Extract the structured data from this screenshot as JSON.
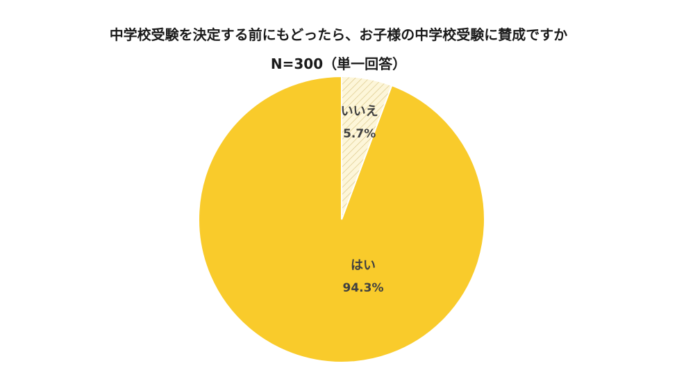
{
  "chart_data": {
    "type": "pie",
    "title": "中学校受験を決定する前にもどったら、お子様の中学校受験に賛成ですか",
    "subtitle": "N=300（単一回答）",
    "categories": [
      "はい",
      "いいえ"
    ],
    "values": [
      94.3,
      5.7
    ],
    "value_labels": [
      "94.3%",
      "5.7%"
    ],
    "unit": "%",
    "colors": [
      "#f9cb2b",
      "#fdf6d9"
    ],
    "slice_patterns": [
      "solid",
      "diagonal-hatch"
    ],
    "legend": "none"
  }
}
